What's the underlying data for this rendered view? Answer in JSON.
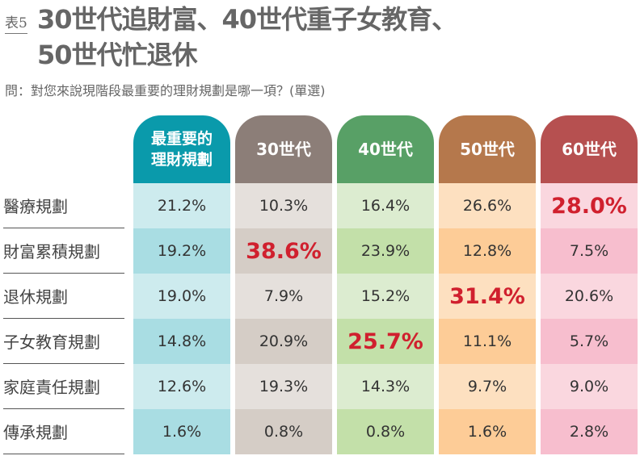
{
  "header": {
    "tag": "表5",
    "title_line1": "30世代追財富、40世代重子女教育、",
    "title_line2": "50世代忙退休",
    "question": "問：對您來說現階段最重要的理財規劃是哪一項？(單選)"
  },
  "chart_data": {
    "type": "table",
    "columns": [
      "最重要的理財規劃",
      "30世代",
      "40世代",
      "50世代",
      "60世代"
    ],
    "rows": [
      "醫療規劃",
      "財富累積規劃",
      "退休規劃",
      "子女教育規劃",
      "家庭責任規劃",
      "傳承規劃"
    ],
    "series": [
      {
        "name": "30世代",
        "values": [
          "10.3%",
          "38.6%",
          "7.9%",
          "20.9%",
          "19.3%",
          "0.8%"
        ],
        "highlight_row": 1
      },
      {
        "name": "40世代",
        "values": [
          "16.4%",
          "23.9%",
          "15.2%",
          "25.7%",
          "14.3%",
          "0.8%"
        ],
        "highlight_row": 3
      },
      {
        "name": "50世代",
        "values": [
          "26.6%",
          "12.8%",
          "31.4%",
          "11.1%",
          "9.7%",
          "1.6%"
        ],
        "highlight_row": 2
      },
      {
        "name": "60世代",
        "values": [
          "28.0%",
          "7.5%",
          "20.6%",
          "5.7%",
          "9.0%",
          "2.8%"
        ],
        "highlight_row": 0
      }
    ],
    "overall": [
      "21.2%",
      "19.2%",
      "19.0%",
      "14.8%",
      "12.6%",
      "1.6%"
    ]
  },
  "colors": {
    "highlight": "#d0202e",
    "palettes": [
      [
        "#0a9aab",
        "#cdebee",
        "#a9dde3"
      ],
      [
        "#8c7e78",
        "#e5e0dc",
        "#d5cdc6"
      ],
      [
        "#58a066",
        "#dcecd0",
        "#c3e0a9"
      ],
      [
        "#b5784c",
        "#fde0c0",
        "#fdcc97"
      ],
      [
        "#b65050",
        "#fad7df",
        "#f7bece"
      ]
    ]
  }
}
